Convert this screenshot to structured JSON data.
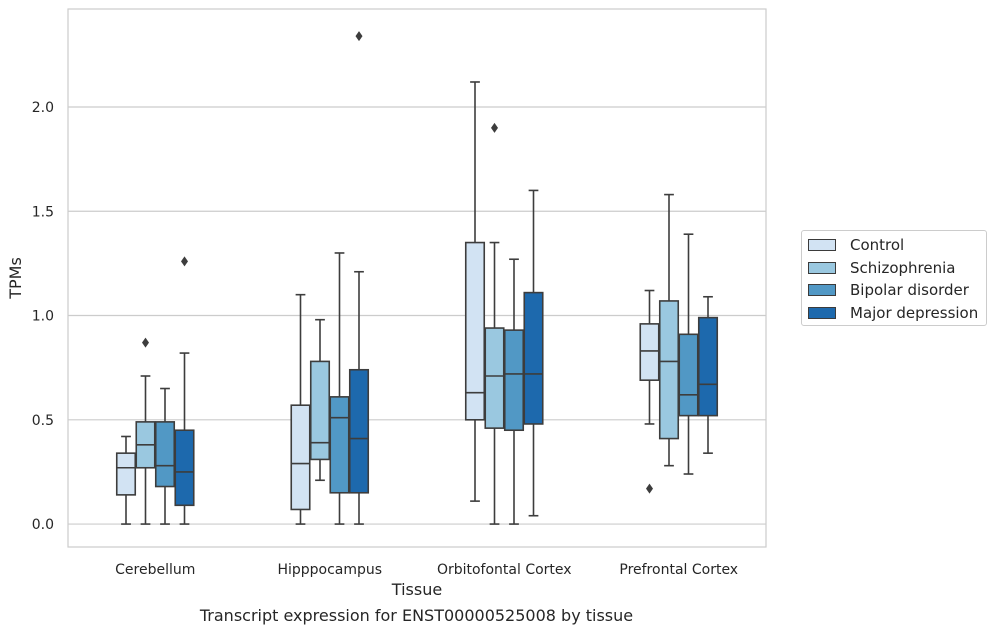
{
  "chart_data": {
    "type": "box",
    "caption": "Transcript expression for ENST00000525008 by tissue",
    "xlabel": "Tissue",
    "ylabel": "TPMs",
    "ylim": [
      -0.11,
      2.47
    ],
    "yticks": [
      0.0,
      0.5,
      1.0,
      1.5,
      2.0
    ],
    "ytick_labels": [
      "0.0",
      "0.5",
      "1.0",
      "1.5",
      "2.0"
    ],
    "grid": "horizontal",
    "legend_position": "right",
    "categories": [
      "Cerebellum",
      "Hipppocampus",
      "Orbitofontal Cortex",
      "Prefrontal Cortex"
    ],
    "series": [
      {
        "name": "Control",
        "color": "#d2e3f3",
        "boxes": [
          {
            "whislo": 0.0,
            "q1": 0.14,
            "med": 0.27,
            "q3": 0.34,
            "whishi": 0.42,
            "fliers": []
          },
          {
            "whislo": 0.0,
            "q1": 0.07,
            "med": 0.29,
            "q3": 0.57,
            "whishi": 1.1,
            "fliers": []
          },
          {
            "whislo": 0.11,
            "q1": 0.5,
            "med": 0.63,
            "q3": 1.35,
            "whishi": 2.12,
            "fliers": []
          },
          {
            "whislo": 0.48,
            "q1": 0.69,
            "med": 0.83,
            "q3": 0.96,
            "whishi": 1.12,
            "fliers": [
              0.17
            ]
          }
        ]
      },
      {
        "name": "Schizophrenia",
        "color": "#9ac8e0",
        "boxes": [
          {
            "whislo": 0.0,
            "q1": 0.27,
            "med": 0.38,
            "q3": 0.49,
            "whishi": 0.71,
            "fliers": [
              0.87
            ]
          },
          {
            "whislo": 0.21,
            "q1": 0.31,
            "med": 0.39,
            "q3": 0.78,
            "whishi": 0.98,
            "fliers": []
          },
          {
            "whislo": 0.0,
            "q1": 0.46,
            "med": 0.71,
            "q3": 0.94,
            "whishi": 1.35,
            "fliers": [
              1.9
            ]
          },
          {
            "whislo": 0.28,
            "q1": 0.41,
            "med": 0.78,
            "q3": 1.07,
            "whishi": 1.58,
            "fliers": []
          }
        ]
      },
      {
        "name": "Bipolar disorder",
        "color": "#5198c5",
        "boxes": [
          {
            "whislo": 0.0,
            "q1": 0.18,
            "med": 0.28,
            "q3": 0.49,
            "whishi": 0.65,
            "fliers": []
          },
          {
            "whislo": 0.0,
            "q1": 0.15,
            "med": 0.51,
            "q3": 0.61,
            "whishi": 1.3,
            "fliers": []
          },
          {
            "whislo": 0.0,
            "q1": 0.45,
            "med": 0.72,
            "q3": 0.93,
            "whishi": 1.27,
            "fliers": []
          },
          {
            "whislo": 0.24,
            "q1": 0.52,
            "med": 0.62,
            "q3": 0.91,
            "whishi": 1.39,
            "fliers": []
          }
        ]
      },
      {
        "name": "Major depression",
        "color": "#1d69ad",
        "boxes": [
          {
            "whislo": 0.0,
            "q1": 0.09,
            "med": 0.25,
            "q3": 0.45,
            "whishi": 0.82,
            "fliers": [
              1.26
            ]
          },
          {
            "whislo": 0.0,
            "q1": 0.15,
            "med": 0.41,
            "q3": 0.74,
            "whishi": 1.21,
            "fliers": [
              2.34
            ]
          },
          {
            "whislo": 0.04,
            "q1": 0.48,
            "med": 0.72,
            "q3": 1.11,
            "whishi": 1.6,
            "fliers": []
          },
          {
            "whislo": 0.34,
            "q1": 0.52,
            "med": 0.67,
            "q3": 0.99,
            "whishi": 1.09,
            "fliers": []
          }
        ]
      }
    ]
  }
}
